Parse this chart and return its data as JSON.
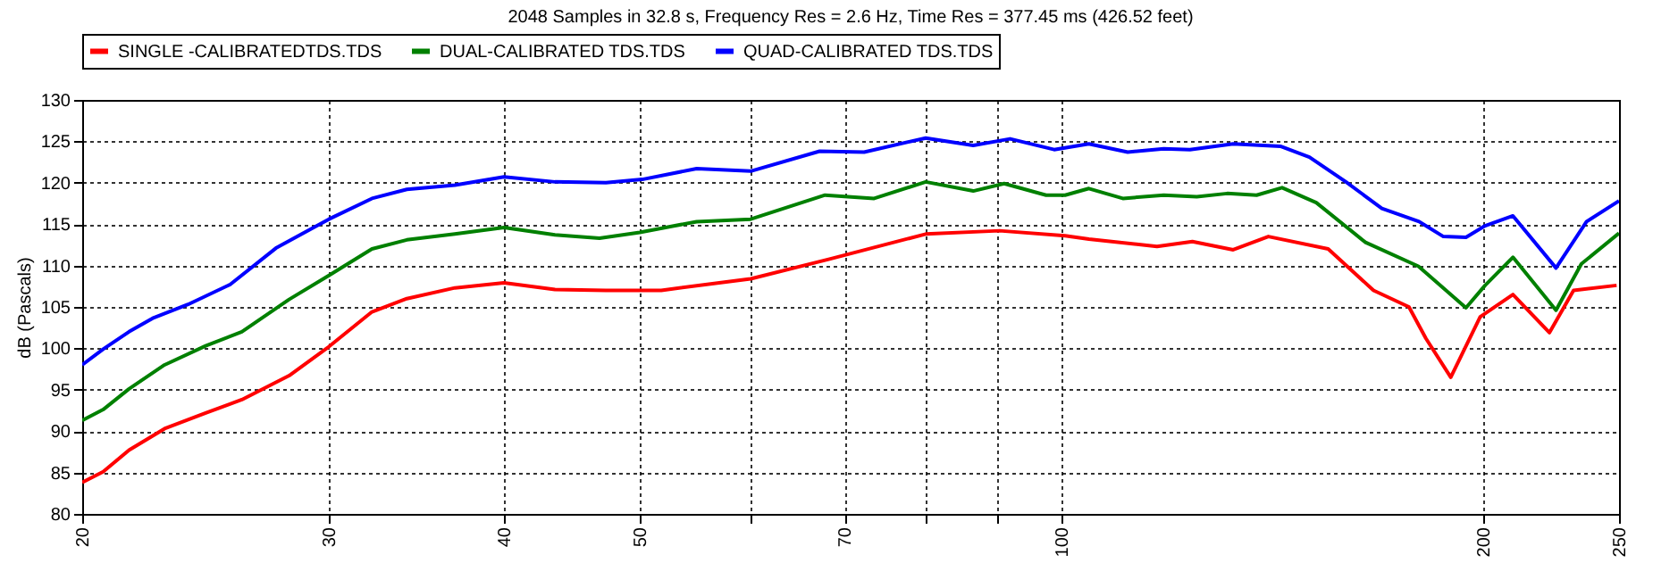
{
  "chart_data": {
    "type": "line",
    "title": "2048 Samples in 32.8 s, Frequency Res = 2.6 Hz, Time Res = 377.45 ms (426.52 feet)",
    "ylabel": "dB (Pascals)",
    "log": "x",
    "grid": true,
    "legend": "top",
    "line_style": "solid",
    "xlim": [
      20,
      250
    ],
    "xticks": [
      20,
      30,
      40,
      50,
      {
        "value": 60,
        "label": null
      },
      70,
      {
        "value": 80,
        "label": null
      },
      {
        "value": 90,
        "label": null
      },
      100,
      200,
      250
    ],
    "ylim": [
      80,
      130
    ],
    "yticks": [
      80,
      85,
      90,
      95,
      100,
      105,
      110,
      115,
      120,
      125,
      130
    ],
    "series": [
      {
        "name": "SINGLE -CALIBRATEDTDS.TDS",
        "color": "#ff0000",
        "x": [
          20,
          20.7,
          21.6,
          22.9,
          24.5,
          26,
          28.1,
          30,
          32.2,
          34.1,
          36.9,
          40,
          43.5,
          47.3,
          51.8,
          60,
          68.4,
          80,
          90.3,
          100.6,
          104.6,
          117,
          124,
          132.6,
          140.5,
          155,
          167,
          177,
          182,
          189.6,
          199,
          210,
          223,
          232,
          249
        ],
        "values": [
          83.8,
          85.1,
          87.7,
          90.3,
          92.2,
          93.8,
          96.7,
          100.2,
          104.4,
          106,
          107.3,
          107.9,
          107.1,
          107,
          107,
          108.4,
          110.8,
          113.8,
          114.2,
          113.6,
          113.2,
          112.3,
          112.9,
          111.9,
          113.5,
          112,
          107,
          105,
          101.2,
          96.5,
          103.8,
          106.5,
          101.9,
          107,
          107.6
        ]
      },
      {
        "name": "DUAL-CALIBRATED TDS.TDS",
        "color": "#008000",
        "x": [
          20,
          20.7,
          21.6,
          22.9,
          24.5,
          26,
          28.1,
          30,
          32.2,
          34.1,
          36.9,
          40,
          43.5,
          46.8,
          50,
          54.9,
          60,
          67.8,
          73.5,
          80,
          86.5,
          91,
          97.5,
          100.6,
          104.6,
          110.6,
          118.3,
          124.9,
          131.3,
          137.8,
          143.7,
          152,
          164.8,
          179.8,
          194.4,
          200.6,
          210,
          225.4,
          235,
          250
        ],
        "values": [
          91.3,
          92.6,
          95.1,
          98,
          100.3,
          102,
          105.9,
          108.8,
          112,
          113.1,
          113.8,
          114.6,
          113.7,
          113.3,
          114,
          115.3,
          115.6,
          118.5,
          118.1,
          120.1,
          119,
          119.9,
          118.5,
          118.5,
          119.3,
          118.1,
          118.5,
          118.3,
          118.7,
          118.5,
          119.4,
          117.6,
          112.8,
          109.9,
          104.9,
          107.6,
          111,
          104.6,
          110.2,
          113.9
        ]
      },
      {
        "name": "QUAD-CALIBRATED TDS.TDS",
        "color": "#0000ff",
        "x": [
          20,
          20.7,
          21.6,
          22.5,
          23.8,
          25.5,
          27.5,
          30,
          32.2,
          34.1,
          36.9,
          40,
          43.5,
          47.3,
          50.2,
          54.9,
          60,
          67.2,
          72.3,
          80,
          86.5,
          91.9,
          98.8,
          104.6,
          111.5,
          118.3,
          123.5,
          132.6,
          143.3,
          150.3,
          159.6,
          169.3,
          180,
          187.3,
          194.4,
          200.6,
          210,
          225.4,
          237,
          250
        ],
        "values": [
          98,
          99.9,
          102,
          103.7,
          105.3,
          107.7,
          112.1,
          115.6,
          118.1,
          119.2,
          119.7,
          120.7,
          120.1,
          120,
          120.4,
          121.7,
          121.4,
          123.8,
          123.7,
          125.4,
          124.5,
          125.3,
          124,
          124.7,
          123.7,
          124.1,
          124,
          124.7,
          124.4,
          123.1,
          120.1,
          116.9,
          115.3,
          113.5,
          113.4,
          114.8,
          116,
          109.7,
          115.3,
          117.8
        ]
      }
    ]
  }
}
